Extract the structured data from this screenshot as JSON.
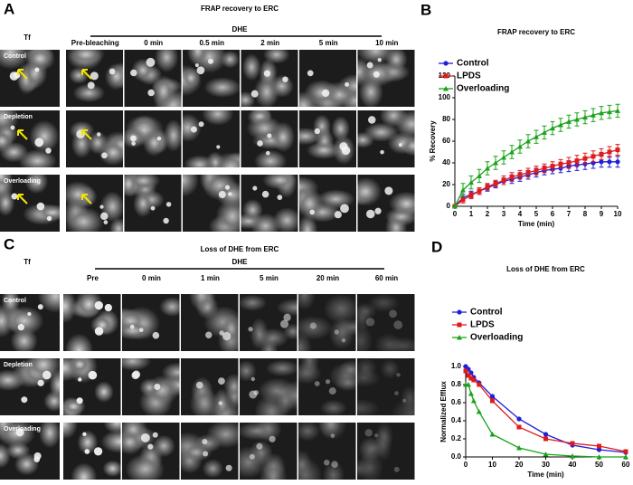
{
  "panel_a": {
    "label": "A",
    "title": "FRAP recovery to ERC",
    "stain": "Tf",
    "treatment": "DHE",
    "columns": [
      "Pre-bleaching",
      "0 min",
      "0.5 min",
      "2 min",
      "5 min",
      "10 min"
    ],
    "rows": [
      "Control",
      "Depletion",
      "Overloading"
    ]
  },
  "panel_c": {
    "label": "C",
    "title": "Loss of DHE from ERC",
    "stain": "Tf",
    "treatment": "DHE",
    "columns": [
      "Pre",
      "0 min",
      "1 min",
      "5 min",
      "20 min",
      "60 min"
    ],
    "rows": [
      "Control",
      "Depletion",
      "Overloading"
    ]
  },
  "chart_data": [
    {
      "panel": "B",
      "type": "line",
      "title": "FRAP recovery to ERC",
      "xlabel": "Time (min)",
      "ylabel": "% Recovery",
      "x": [
        0,
        0.5,
        1,
        1.5,
        2,
        2.5,
        3,
        3.5,
        4,
        4.5,
        5,
        5.5,
        6,
        6.5,
        7,
        7.5,
        8,
        8.5,
        9,
        9.5,
        10
      ],
      "series": [
        {
          "name": "Control",
          "color": "#1f1fd6",
          "marker": "circle",
          "values": [
            0,
            8,
            11,
            14,
            17,
            20,
            23,
            25,
            27,
            29,
            31,
            33,
            34,
            35,
            37,
            38,
            39,
            40,
            41,
            41,
            41
          ],
          "errors": [
            0,
            3,
            3,
            3,
            3,
            3,
            3,
            4,
            4,
            4,
            4,
            4,
            4,
            4,
            5,
            5,
            5,
            5,
            5,
            5,
            5
          ]
        },
        {
          "name": "LPDS",
          "color": "#e01b1b",
          "marker": "square",
          "values": [
            0,
            6,
            10,
            14,
            18,
            21,
            24,
            27,
            29,
            31,
            33,
            35,
            37,
            39,
            40,
            42,
            44,
            46,
            48,
            50,
            52
          ],
          "errors": [
            0,
            3,
            3,
            3,
            3,
            3,
            4,
            4,
            4,
            4,
            4,
            4,
            4,
            4,
            5,
            5,
            5,
            5,
            5,
            5,
            5
          ]
        },
        {
          "name": "Overloading",
          "color": "#1aa31a",
          "marker": "triangle",
          "values": [
            0,
            15,
            22,
            28,
            35,
            40,
            45,
            50,
            55,
            60,
            64,
            68,
            72,
            75,
            78,
            80,
            82,
            84,
            86,
            87,
            88
          ],
          "errors": [
            0,
            6,
            6,
            6,
            6,
            6,
            6,
            6,
            6,
            6,
            6,
            6,
            6,
            6,
            6,
            6,
            6,
            6,
            6,
            6,
            6
          ]
        }
      ],
      "xlim": [
        0,
        10
      ],
      "ylim": [
        0,
        120
      ],
      "xticks": [
        0,
        1,
        2,
        3,
        4,
        5,
        6,
        7,
        8,
        9,
        10
      ],
      "yticks": [
        0,
        20,
        40,
        60,
        80,
        100,
        120
      ],
      "legend": "upper left"
    },
    {
      "panel": "D",
      "type": "line",
      "title": "Loss of DHE from ERC",
      "xlabel": "Time (min)",
      "ylabel": "Normalized Efflux",
      "x": [
        0,
        1,
        2,
        3,
        5,
        10,
        20,
        30,
        40,
        50,
        60
      ],
      "series": [
        {
          "name": "Control",
          "color": "#1f1fd6",
          "marker": "circle",
          "values": [
            1.0,
            0.97,
            0.93,
            0.88,
            0.82,
            0.67,
            0.42,
            0.25,
            0.13,
            0.08,
            0.05
          ]
        },
        {
          "name": "LPDS",
          "color": "#e01b1b",
          "marker": "square",
          "values": [
            0.95,
            0.9,
            0.87,
            0.85,
            0.8,
            0.62,
            0.33,
            0.2,
            0.15,
            0.12,
            0.06
          ]
        },
        {
          "name": "Overloading",
          "color": "#1aa31a",
          "marker": "triangle",
          "values": [
            0.8,
            0.8,
            0.7,
            0.62,
            0.5,
            0.25,
            0.1,
            0.03,
            0.01,
            0,
            0
          ]
        }
      ],
      "xlim": [
        0,
        60
      ],
      "ylim": [
        0,
        1.0
      ],
      "xticks": [
        0,
        10,
        20,
        30,
        40,
        50,
        60
      ],
      "yticks": [
        {
          "value": 0,
          "label": "0.0"
        },
        0.2,
        0.4,
        0.6,
        0.8,
        {
          "value": 1.0,
          "label": "1.0"
        }
      ],
      "legend": "upper left"
    }
  ]
}
